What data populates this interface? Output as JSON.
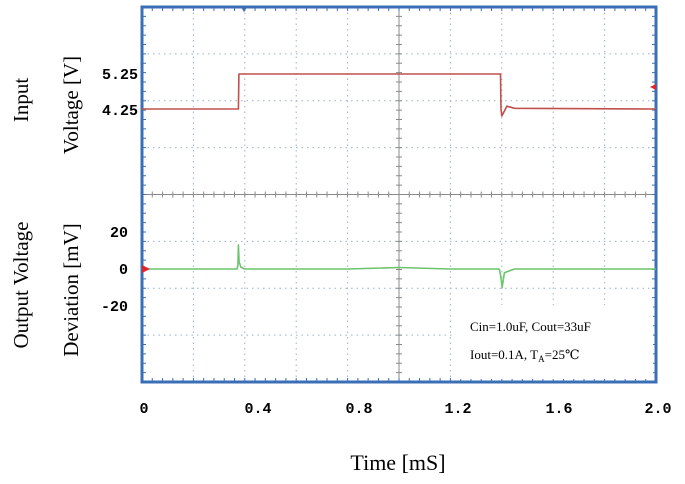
{
  "chart_data": [
    {
      "type": "line",
      "panel": "top",
      "ylabel_line1": "Input",
      "ylabel_line2": "Voltage [V]",
      "yticks": [
        "5.25",
        "4.25"
      ],
      "series": [
        {
          "color": "#c0504d",
          "x": [
            0.0,
            0.375,
            0.377,
            1.395,
            1.397,
            1.4,
            1.42,
            1.45,
            2.0
          ],
          "y": [
            4.25,
            4.25,
            5.25,
            5.25,
            4.25,
            4.05,
            4.33,
            4.27,
            4.25
          ]
        }
      ]
    },
    {
      "type": "line",
      "panel": "bottom",
      "ylabel_line1": "Output Voltage",
      "ylabel_line2": "Deviation [mV]",
      "yticks": [
        "20",
        "0",
        "-20"
      ],
      "series": [
        {
          "color": "#6cc46c",
          "x": [
            0.0,
            0.37,
            0.373,
            0.375,
            0.378,
            0.385,
            0.4,
            0.8,
            1.0,
            1.2,
            1.39,
            1.395,
            1.398,
            1.401,
            1.41,
            1.45,
            2.0
          ],
          "y": [
            0,
            0,
            2,
            13,
            4,
            1,
            0,
            0,
            0.8,
            0,
            0,
            -3,
            -6,
            -10,
            -2,
            0,
            0
          ]
        }
      ]
    }
  ],
  "xaxis": {
    "ticks": [
      "0",
      "0.4",
      "0.8",
      "1.2",
      "1.6",
      "2.0"
    ],
    "xlim": [
      0,
      2.0
    ],
    "label": "Time [mS]"
  },
  "annotation": {
    "line1": "Cin=1.0uF, Cout=33uF",
    "line2_prefix": "Iout=0.1A, T",
    "line2_sub": "A",
    "line2_suffix": "=25℃"
  },
  "colors": {
    "frame": "#3a6fb5",
    "grid": "#9ab0cc",
    "input_trace": "#c0504d",
    "output_trace": "#6cc46c",
    "marker": "#e0242c"
  }
}
